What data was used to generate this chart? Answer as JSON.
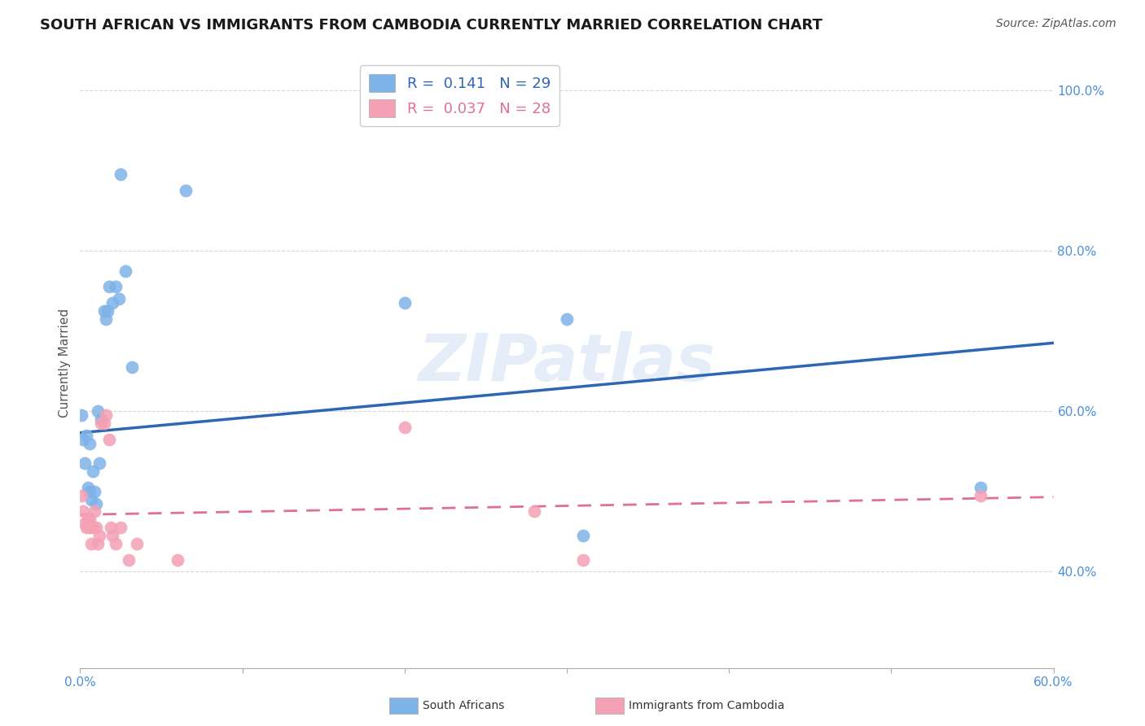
{
  "title": "SOUTH AFRICAN VS IMMIGRANTS FROM CAMBODIA CURRENTLY MARRIED CORRELATION CHART",
  "source": "Source: ZipAtlas.com",
  "ylabel": "Currently Married",
  "watermark": "ZIPatlas",
  "xlim": [
    0.0,
    0.6
  ],
  "ylim": [
    0.28,
    1.04
  ],
  "xticks": [
    0.0,
    0.1,
    0.2,
    0.3,
    0.4,
    0.5,
    0.6
  ],
  "yticks": [
    0.4,
    0.6,
    0.8,
    1.0
  ],
  "ytick_labels": [
    "40.0%",
    "60.0%",
    "80.0%",
    "100.0%"
  ],
  "xtick_labels": [
    "0.0%",
    "",
    "",
    "",
    "",
    "",
    "60.0%"
  ],
  "grid_color": "#cccccc",
  "background_color": "#ffffff",
  "sa_color": "#7eb3e8",
  "camb_color": "#f4a0b5",
  "sa_line_color": "#2f65b5",
  "camb_line_color": "#e07090",
  "legend_sa_R": "0.141",
  "legend_sa_N": "29",
  "legend_camb_R": "0.037",
  "legend_camb_N": "28",
  "sa_x": [
    0.001,
    0.002,
    0.003,
    0.004,
    0.005,
    0.006,
    0.006,
    0.007,
    0.008,
    0.009,
    0.01,
    0.011,
    0.012,
    0.013,
    0.015,
    0.016,
    0.017,
    0.018,
    0.02,
    0.022,
    0.024,
    0.025,
    0.028,
    0.032,
    0.065,
    0.2,
    0.3,
    0.31,
    0.555
  ],
  "sa_y": [
    0.595,
    0.565,
    0.535,
    0.57,
    0.505,
    0.5,
    0.56,
    0.49,
    0.525,
    0.5,
    0.485,
    0.6,
    0.535,
    0.59,
    0.725,
    0.715,
    0.725,
    0.755,
    0.735,
    0.755,
    0.74,
    0.895,
    0.775,
    0.655,
    0.875,
    0.735,
    0.715,
    0.445,
    0.505
  ],
  "camb_x": [
    0.001,
    0.002,
    0.003,
    0.004,
    0.005,
    0.006,
    0.006,
    0.007,
    0.008,
    0.009,
    0.01,
    0.011,
    0.012,
    0.013,
    0.015,
    0.016,
    0.018,
    0.019,
    0.02,
    0.022,
    0.025,
    0.03,
    0.035,
    0.06,
    0.2,
    0.28,
    0.31,
    0.555
  ],
  "camb_y": [
    0.495,
    0.475,
    0.46,
    0.455,
    0.465,
    0.455,
    0.465,
    0.435,
    0.455,
    0.475,
    0.455,
    0.435,
    0.445,
    0.585,
    0.585,
    0.595,
    0.565,
    0.455,
    0.445,
    0.435,
    0.455,
    0.415,
    0.435,
    0.415,
    0.58,
    0.475,
    0.415,
    0.495
  ],
  "marker_size": 130,
  "title_fontsize": 13,
  "axis_label_fontsize": 11,
  "tick_fontsize": 11,
  "legend_fontsize": 13,
  "source_fontsize": 10,
  "watermark_fontsize": 58,
  "watermark_color": "#c5d8f0",
  "watermark_alpha": 0.45,
  "sa_line_x": [
    0.0,
    0.6
  ],
  "sa_line_y": [
    0.573,
    0.685
  ],
  "camb_line_x": [
    0.0,
    0.6
  ],
  "camb_line_y": [
    0.471,
    0.493
  ]
}
